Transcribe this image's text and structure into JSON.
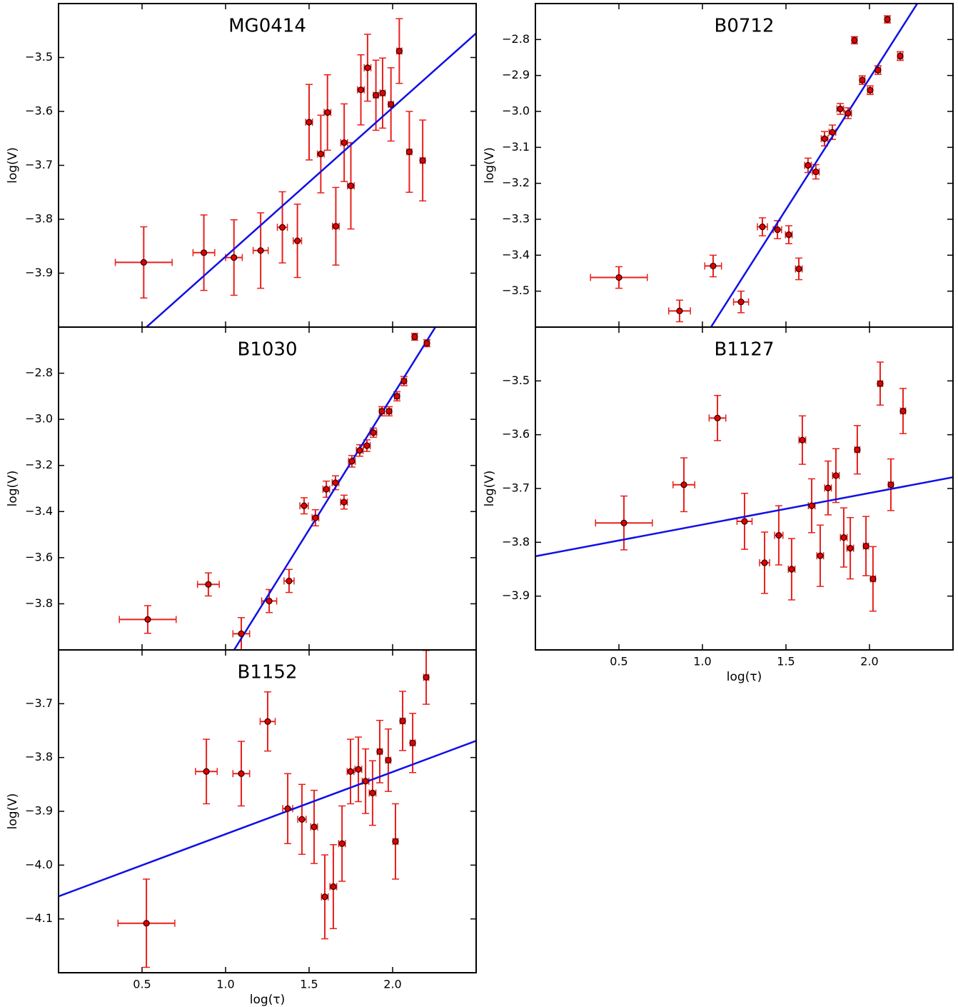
{
  "chart_data": [
    {
      "type": "scatter",
      "title": "MG0414",
      "ylabel": "log(V)",
      "xtick_labels": false,
      "x": [
        0.51,
        0.87,
        1.05,
        1.21,
        1.34,
        1.43,
        1.5,
        1.57,
        1.61,
        1.66,
        1.71,
        1.75,
        1.81,
        1.85,
        1.9,
        1.94,
        1.99,
        2.04,
        2.1,
        2.18
      ],
      "values": [
        -3.88,
        -3.862,
        -3.871,
        -3.858,
        -3.815,
        -3.84,
        -3.62,
        -3.679,
        -3.602,
        -3.813,
        -3.658,
        -3.738,
        -3.56,
        -3.519,
        -3.57,
        -3.566,
        -3.587,
        -3.488,
        -3.675,
        -3.691
      ],
      "xerr": [
        0.17,
        0.065,
        0.05,
        0.045,
        0.03,
        0.025,
        0.02,
        0.02,
        0.02,
        0.02,
        0.02,
        0.02,
        0.02,
        0.02,
        0.015,
        0.015,
        0.015,
        0.015,
        0.015,
        0.015
      ],
      "yerr": [
        0.066,
        0.07,
        0.07,
        0.07,
        0.066,
        0.068,
        0.07,
        0.072,
        0.07,
        0.072,
        0.072,
        0.08,
        0.065,
        0.062,
        0.065,
        0.065,
        0.068,
        0.06,
        0.075,
        0.075
      ],
      "color": "#e00000",
      "edgecolor": "#200000",
      "errcolor": "#e8201c",
      "fit": {
        "x": [
          0.526,
          2.5
        ],
        "y": [
          -4.0,
          -3.455
        ],
        "color": "#1010e6"
      },
      "xlim": [
        0,
        2.5
      ],
      "ylim": [
        -4.0,
        -3.4
      ],
      "xticks": [
        0.5,
        {
          "value": 1,
          "label": "1.0"
        },
        1.5,
        {
          "value": 2,
          "label": "2.0"
        }
      ],
      "yticks": [
        {
          "value": -3.5,
          "label": "−3.5"
        },
        {
          "value": -3.6,
          "label": "−3.6"
        },
        {
          "value": -3.7,
          "label": "−3.7"
        },
        {
          "value": -3.8,
          "label": "−3.8"
        },
        {
          "value": -3.9,
          "label": "−3.9"
        }
      ]
    },
    {
      "type": "scatter",
      "title": "B0712",
      "ylabel": "log(V)",
      "xtick_labels": false,
      "x": [
        0.5,
        0.863,
        1.064,
        1.231,
        1.359,
        1.449,
        1.517,
        1.577,
        1.632,
        1.679,
        1.731,
        1.778,
        1.825,
        1.872,
        1.91,
        1.957,
        2.004,
        2.051,
        2.107,
        2.184
      ],
      "values": [
        -3.462,
        -3.555,
        -3.43,
        -3.53,
        -3.321,
        -3.329,
        -3.343,
        -3.438,
        -3.15,
        -3.168,
        -3.076,
        -3.058,
        -2.993,
        -3.005,
        -2.802,
        -2.913,
        -2.941,
        -2.885,
        -2.744,
        -2.846
      ],
      "xerr": [
        0.17,
        0.065,
        0.05,
        0.045,
        0.03,
        0.025,
        0.02,
        0.02,
        0.02,
        0.02,
        0.02,
        0.02,
        0.02,
        0.02,
        0.015,
        0.015,
        0.015,
        0.015,
        0.015,
        0.015
      ],
      "yerr": [
        0.03,
        0.03,
        0.03,
        0.03,
        0.025,
        0.025,
        0.025,
        0.03,
        0.02,
        0.02,
        0.02,
        0.02,
        0.015,
        0.015,
        0.01,
        0.012,
        0.012,
        0.012,
        0.01,
        0.012
      ],
      "color": "#e00000",
      "edgecolor": "#200000",
      "errcolor": "#e8201c",
      "fit": {
        "x": [
          1.051,
          2.286
        ],
        "y": [
          -3.6,
          -2.7
        ],
        "color": "#1010e6"
      },
      "xlim": [
        0,
        2.5
      ],
      "ylim": [
        -3.6,
        -2.7
      ],
      "xticks": [
        0.5,
        {
          "value": 1,
          "label": "1.0"
        },
        1.5,
        {
          "value": 2,
          "label": "2.0"
        }
      ],
      "yticks": [
        {
          "value": -2.8,
          "label": "−2.8"
        },
        {
          "value": -2.9,
          "label": "−2.9"
        },
        {
          "value": -3.0,
          "label": "−3.0"
        },
        {
          "value": -3.1,
          "label": "−3.1"
        },
        {
          "value": -3.2,
          "label": "−3.2"
        },
        {
          "value": -3.3,
          "label": "−3.3"
        },
        {
          "value": -3.4,
          "label": "−3.4"
        },
        {
          "value": -3.5,
          "label": "−3.5"
        }
      ]
    },
    {
      "type": "scatter",
      "title": "B1030",
      "ylabel": "log(V)",
      "xtick_labels": false,
      "x": [
        0.534,
        0.897,
        1.094,
        1.261,
        1.38,
        1.47,
        1.538,
        1.603,
        1.658,
        1.709,
        1.756,
        1.803,
        1.846,
        1.885,
        1.936,
        1.979,
        2.026,
        2.068,
        2.132,
        2.205
      ],
      "values": [
        -3.868,
        -3.716,
        -3.93,
        -3.788,
        -3.701,
        -3.375,
        -3.427,
        -3.303,
        -3.275,
        -3.359,
        -3.182,
        -3.135,
        -3.114,
        -3.058,
        -2.965,
        -2.965,
        -2.9,
        -2.834,
        -2.642,
        -2.67
      ],
      "xerr": [
        0.17,
        0.065,
        0.05,
        0.045,
        0.03,
        0.025,
        0.02,
        0.02,
        0.02,
        0.02,
        0.02,
        0.02,
        0.02,
        0.02,
        0.015,
        0.015,
        0.015,
        0.015,
        0.015,
        0.015
      ],
      "yerr": [
        0.06,
        0.05,
        0.07,
        0.05,
        0.05,
        0.035,
        0.035,
        0.035,
        0.03,
        0.03,
        0.025,
        0.025,
        0.025,
        0.02,
        0.02,
        0.02,
        0.02,
        0.02,
        0.015,
        0.015
      ],
      "color": "#e00000",
      "edgecolor": "#200000",
      "errcolor": "#e8201c",
      "fit": {
        "x": [
          1.051,
          2.256
        ],
        "y": [
          -4.0,
          -2.6
        ],
        "color": "#1010e6"
      },
      "xlim": [
        0,
        2.5
      ],
      "ylim": [
        -4.0,
        -2.6
      ],
      "xticks": [
        0.5,
        {
          "value": 1,
          "label": "1.0"
        },
        1.5,
        {
          "value": 2,
          "label": "2.0"
        }
      ],
      "yticks": [
        {
          "value": -2.8,
          "label": "−2.8"
        },
        {
          "value": -3.0,
          "label": "−3.0"
        },
        {
          "value": -3.2,
          "label": "−3.2"
        },
        {
          "value": -3.4,
          "label": "−3.4"
        },
        {
          "value": -3.6,
          "label": "−3.6"
        },
        {
          "value": -3.8,
          "label": "−3.8"
        }
      ]
    },
    {
      "type": "scatter",
      "title": "B1127",
      "ylabel": "log(V)",
      "xlabel": "log(τ)",
      "xtick_labels": true,
      "x": [
        0.53,
        0.889,
        1.09,
        1.252,
        1.372,
        1.457,
        1.534,
        1.598,
        1.654,
        1.705,
        1.752,
        1.799,
        1.846,
        1.885,
        1.927,
        1.979,
        2.021,
        2.064,
        2.128,
        2.201
      ],
      "values": [
        -3.764,
        -3.693,
        -3.569,
        -3.761,
        -3.838,
        -3.787,
        -3.85,
        -3.61,
        -3.732,
        -3.825,
        -3.699,
        -3.676,
        -3.791,
        -3.811,
        -3.628,
        -3.807,
        -3.868,
        -3.505,
        -3.693,
        -3.556
      ],
      "xerr": [
        0.17,
        0.065,
        0.05,
        0.045,
        0.03,
        0.025,
        0.02,
        0.02,
        0.02,
        0.02,
        0.02,
        0.02,
        0.02,
        0.02,
        0.015,
        0.015,
        0.015,
        0.015,
        0.015,
        0.015
      ],
      "yerr": [
        0.05,
        0.05,
        0.042,
        0.052,
        0.057,
        0.055,
        0.057,
        0.045,
        0.05,
        0.057,
        0.05,
        0.05,
        0.055,
        0.057,
        0.045,
        0.055,
        0.06,
        0.04,
        0.048,
        0.042
      ],
      "color": "#e00000",
      "edgecolor": "#200000",
      "errcolor": "#e8201c",
      "fit": {
        "x": [
          0,
          2.5
        ],
        "y": [
          -3.826,
          -3.679
        ],
        "color": "#1010e6"
      },
      "xlim": [
        0,
        2.5
      ],
      "ylim": [
        -4.0,
        -3.4
      ],
      "xticks": [
        0.5,
        {
          "value": 1,
          "label": "1.0"
        },
        1.5,
        {
          "value": 2,
          "label": "2.0"
        }
      ],
      "yticks": [
        {
          "value": -3.5,
          "label": "−3.5"
        },
        {
          "value": -3.6,
          "label": "−3.6"
        },
        {
          "value": -3.7,
          "label": "−3.7"
        },
        {
          "value": -3.8,
          "label": "−3.8"
        },
        {
          "value": -3.9,
          "label": "−3.9"
        }
      ]
    },
    {
      "type": "scatter",
      "title": "B1152",
      "ylabel": "log(V)",
      "xlabel": "log(τ)",
      "xtick_labels": true,
      "x": [
        0.526,
        0.885,
        1.094,
        1.252,
        1.372,
        1.457,
        1.53,
        1.594,
        1.645,
        1.697,
        1.748,
        1.795,
        1.838,
        1.88,
        1.923,
        1.974,
        2.017,
        2.06,
        2.12,
        2.201
      ],
      "values": [
        -4.108,
        -3.826,
        -3.83,
        -3.733,
        -3.895,
        -3.915,
        -3.929,
        -4.059,
        -4.04,
        -3.96,
        -3.826,
        -3.822,
        -3.844,
        -3.866,
        -3.789,
        -3.805,
        -3.956,
        -3.732,
        -3.773,
        -3.651
      ],
      "xerr": [
        0.17,
        0.065,
        0.05,
        0.045,
        0.03,
        0.025,
        0.02,
        0.02,
        0.02,
        0.02,
        0.02,
        0.02,
        0.02,
        0.02,
        0.015,
        0.015,
        0.015,
        0.015,
        0.015,
        0.015
      ],
      "yerr": [
        0.082,
        0.06,
        0.06,
        0.055,
        0.065,
        0.065,
        0.068,
        0.078,
        0.078,
        0.07,
        0.06,
        0.06,
        0.06,
        0.06,
        0.058,
        0.058,
        0.07,
        0.055,
        0.055,
        0.05
      ],
      "color": "#e00000",
      "edgecolor": "#200000",
      "errcolor": "#e8201c",
      "fit": {
        "x": [
          0,
          2.5
        ],
        "y": [
          -4.058,
          -3.769
        ],
        "color": "#1010e6"
      },
      "xlim": [
        0,
        2.5
      ],
      "ylim": [
        -4.2,
        -3.6
      ],
      "xticks": [
        0.5,
        {
          "value": 1,
          "label": "1.0"
        },
        1.5,
        {
          "value": 2,
          "label": "2.0"
        }
      ],
      "yticks": [
        {
          "value": -3.7,
          "label": "−3.7"
        },
        {
          "value": -3.8,
          "label": "−3.8"
        },
        {
          "value": -3.9,
          "label": "−3.9"
        },
        {
          "value": -4.0,
          "label": "−4.0"
        },
        {
          "value": -4.1,
          "label": "−4.1"
        }
      ]
    }
  ]
}
